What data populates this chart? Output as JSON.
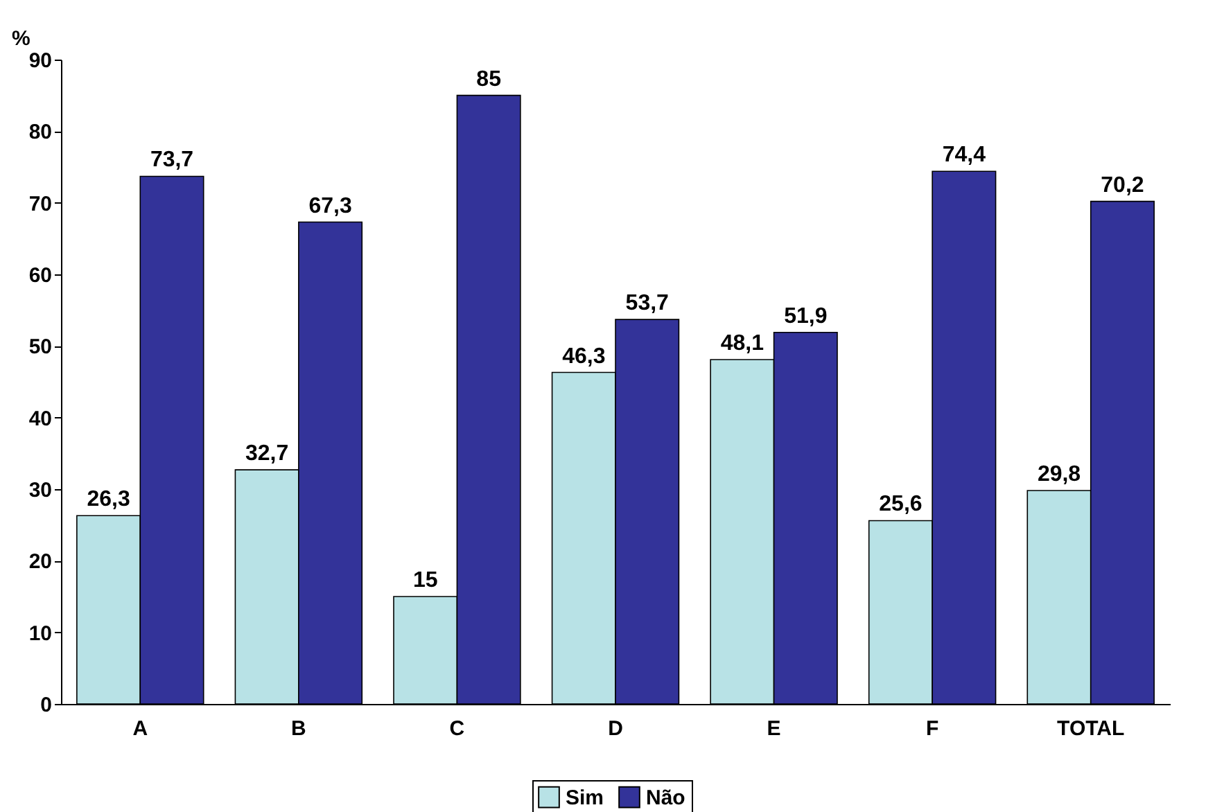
{
  "chart_data": {
    "type": "bar",
    "ylabel": "%",
    "categories": [
      "A",
      "B",
      "C",
      "D",
      "E",
      "F",
      "TOTAL"
    ],
    "series": [
      {
        "name": "Sim",
        "color": "#b8e2e6",
        "values": [
          26.3,
          32.7,
          15,
          46.3,
          48.1,
          25.6,
          29.8
        ],
        "value_labels": [
          "26,3",
          "32,7",
          "15",
          "46,3",
          "48,1",
          "25,6",
          "29,8"
        ]
      },
      {
        "name": "Não",
        "color": "#333399",
        "values": [
          73.7,
          67.3,
          85,
          53.7,
          51.9,
          74.4,
          70.2
        ],
        "value_labels": [
          "73,7",
          "67,3",
          "85",
          "53,7",
          "51,9",
          "74,4",
          "70,2"
        ]
      }
    ],
    "ylim": [
      0,
      90
    ],
    "yticks": [
      0,
      10,
      20,
      30,
      40,
      50,
      60,
      70,
      80,
      90
    ],
    "grid": false,
    "legend": "bottom"
  }
}
